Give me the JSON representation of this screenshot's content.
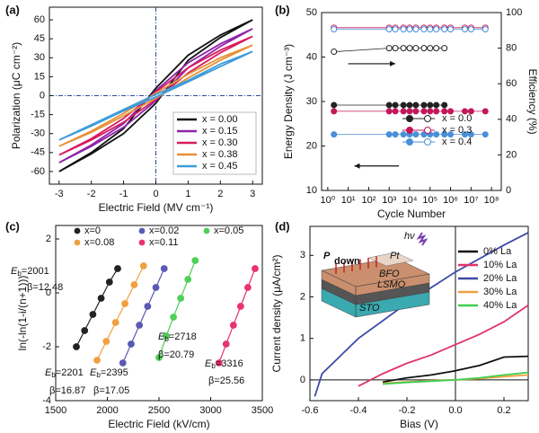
{
  "chart_data": [
    {
      "type": "line",
      "panel_label": "(a)",
      "xlabel": "Electric Field (MV cm⁻¹)",
      "ylabel": "Polarization (μC cm⁻²)",
      "x": [
        -3,
        -2,
        -1,
        0,
        1,
        2,
        3,
        2,
        1,
        0,
        -1,
        -2,
        -3
      ],
      "series": [
        {
          "name": "x = 0.00",
          "color": "#111111",
          "values": [
            -60,
            -46,
            -30,
            -6,
            28,
            46,
            60,
            48,
            32,
            6,
            -26,
            -45,
            -60
          ]
        },
        {
          "name": "x = 0.15",
          "color": "#8e24aa",
          "values": [
            -53,
            -40,
            -25,
            -4,
            22,
            39,
            53,
            41,
            26,
            4,
            -22,
            -39,
            -53
          ]
        },
        {
          "name": "x = 0.30",
          "color": "#d81b60",
          "values": [
            -47,
            -35,
            -21,
            -3,
            18,
            34,
            47,
            36,
            22,
            3,
            -18,
            -34,
            -47
          ]
        },
        {
          "name": "x = 0.38",
          "color": "#e69138",
          "values": [
            -40,
            -29,
            -16,
            -2,
            14,
            28,
            40,
            30,
            17,
            2,
            -14,
            -28,
            -40
          ]
        },
        {
          "name": "x = 0.45",
          "color": "#3d9bd9",
          "values": [
            -35,
            -24,
            -12,
            -1,
            11,
            23,
            35,
            25,
            12,
            1,
            -11,
            -23,
            -35
          ]
        }
      ],
      "xlim": [
        -3.3,
        3.3
      ],
      "xticks": [
        -3,
        -2,
        -1,
        0,
        1,
        2,
        3
      ],
      "ylim": [
        -70,
        70
      ],
      "yticks": [
        -60,
        -45,
        -30,
        -15,
        0,
        15,
        30,
        45,
        60
      ],
      "zero_lines": true,
      "legend": "lower right"
    },
    {
      "type": "line",
      "markers": true,
      "panel_label": "(b)",
      "xlabel": "Cycle Number",
      "ylabel": "Energy Density (J cm⁻³)",
      "y2label": "Efficiency (%)",
      "xscale": "log",
      "x": [
        2,
        1000,
        2000,
        5000,
        10000,
        20000,
        50000,
        100000,
        200000,
        500000,
        1000000,
        5000000,
        10000000,
        50000000
      ],
      "series": [
        {
          "name": "x = 0.0",
          "color": "#222222",
          "values": [
            29.2,
            29.2,
            29.2,
            29.2,
            29.2,
            29.2,
            29.2,
            29.2,
            29.2,
            29.2,
            null,
            null,
            null,
            null
          ]
        },
        {
          "name": "x = 0.3",
          "color": "#c2185b",
          "values": [
            27.8,
            27.8,
            27.8,
            27.8,
            27.8,
            27.8,
            27.8,
            27.8,
            27.8,
            27.8,
            27.8,
            27.8,
            27.8,
            27.8
          ]
        },
        {
          "name": "x = 0.4",
          "color": "#4a90d9",
          "values": [
            22.6,
            22.6,
            22.6,
            22.6,
            22.6,
            22.6,
            22.6,
            22.6,
            22.6,
            22.6,
            22.6,
            22.6,
            22.6,
            22.6
          ]
        },
        {
          "color": "#222222",
          "axis": "y2",
          "marker": "open",
          "values": [
            78,
            80,
            80,
            80,
            80,
            80,
            80,
            80,
            80,
            80,
            null,
            null,
            null,
            null
          ]
        },
        {
          "color": "#c2185b",
          "axis": "y2",
          "marker": "open",
          "values": [
            91.5,
            91.5,
            91.5,
            91.5,
            91.5,
            91.5,
            91.5,
            91.5,
            91.5,
            91.5,
            91.5,
            91.5,
            91.5,
            91.5
          ]
        },
        {
          "color": "#4a90d9",
          "axis": "y2",
          "marker": "open",
          "values": [
            90.6,
            90.6,
            90.6,
            90.6,
            90.6,
            90.6,
            90.6,
            90.6,
            90.6,
            90.6,
            90.6,
            90.6,
            90.6,
            90.6
          ]
        }
      ],
      "xlim": [
        0.5,
        300000000
      ],
      "xticks": [
        {
          "value": 1,
          "label": "10⁰"
        },
        {
          "value": 10,
          "label": "10¹"
        },
        {
          "value": 100,
          "label": "10²"
        },
        {
          "value": 1000,
          "label": "10³"
        },
        {
          "value": 10000,
          "label": "10⁴"
        },
        {
          "value": 100000,
          "label": "10⁵"
        },
        {
          "value": 1000000,
          "label": "10⁶"
        },
        {
          "value": 10000000,
          "label": "10⁷"
        },
        {
          "value": 100000000,
          "label": "10⁸"
        }
      ],
      "ylim": [
        10,
        50
      ],
      "yticks": [
        10,
        20,
        30,
        40,
        50
      ],
      "y2lim": [
        0,
        100
      ],
      "y2ticks": [
        0,
        20,
        40,
        60,
        80,
        100
      ],
      "legend": "center right"
    },
    {
      "type": "scatter",
      "fit_lines": true,
      "panel_label": "(c)",
      "xlabel": "Electric Field (kV/cm)",
      "ylabel": "ln(-ln(1-i/(n+1)))",
      "series": [
        {
          "name": "x=0",
          "color": "#222222",
          "x": [
            1700,
            1780,
            1860,
            1940,
            2020,
            2100
          ],
          "values": [
            -2.0,
            -1.4,
            -0.8,
            -0.2,
            0.4,
            0.9
          ]
        },
        {
          "name": "x=0.02",
          "color": "#5a5ab4",
          "x": [
            2150,
            2230,
            2310,
            2390,
            2470,
            2550
          ],
          "values": [
            -2.6,
            -1.9,
            -1.2,
            -0.5,
            0.2,
            0.9
          ]
        },
        {
          "name": "x=0.05",
          "color": "#4fcf5a",
          "x": [
            2500,
            2570,
            2640,
            2710,
            2780,
            2850
          ],
          "values": [
            -2.4,
            -1.6,
            -0.9,
            -0.2,
            0.5,
            1.2
          ]
        },
        {
          "name": "x=0.08",
          "color": "#f0a040",
          "x": [
            1900,
            1990,
            2080,
            2170,
            2260,
            2350
          ],
          "values": [
            -2.5,
            -1.8,
            -1.1,
            -0.4,
            0.3,
            1.0
          ]
        },
        {
          "name": "x=0.11",
          "color": "#e8336b",
          "x": [
            3080,
            3150,
            3220,
            3290,
            3360,
            3430
          ],
          "values": [
            -2.6,
            -1.9,
            -1.2,
            -0.5,
            0.2,
            0.9
          ]
        }
      ],
      "annotations": [
        {
          "eb": "Eb=2001",
          "beta": "β=12.48"
        },
        {
          "eb": "Eb=2201",
          "beta": "β=16.87"
        },
        {
          "eb": "Eb=2395",
          "beta": "β=17.05"
        },
        {
          "eb": "Eb=2718",
          "beta": "β=20.79"
        },
        {
          "eb": "Eb=3316",
          "beta": "β=25.56"
        }
      ],
      "xlim": [
        1500,
        3500
      ],
      "xticks": [
        1500,
        2000,
        2500,
        3000,
        3500
      ],
      "ylim": [
        -4,
        2.5
      ],
      "yticks": [
        -4,
        -2,
        0,
        2
      ],
      "legend": "upper left",
      "legend_columns": 3
    },
    {
      "type": "line",
      "panel_label": "(d)",
      "xlabel": "Bias (V)",
      "ylabel": "Current density (μA/cm²)",
      "series": [
        {
          "name": "0% La",
          "color": "#111111",
          "x": [
            -0.3,
            -0.2,
            -0.1,
            0,
            0.1,
            0.2,
            0.3
          ],
          "values": [
            -0.05,
            0.05,
            0.12,
            0.22,
            0.35,
            0.55,
            0.57
          ]
        },
        {
          "name": "10% La",
          "color": "#e0336b",
          "x": [
            -0.4,
            -0.3,
            -0.2,
            -0.1,
            0,
            0.1,
            0.2,
            0.3
          ],
          "values": [
            -0.15,
            0.15,
            0.4,
            0.6,
            0.85,
            1.1,
            1.4,
            1.8
          ]
        },
        {
          "name": "20% La",
          "color": "#3d4aa8",
          "x": [
            -0.58,
            -0.55,
            -0.4,
            -0.2,
            0,
            0.2,
            0.3
          ],
          "values": [
            -0.4,
            0.15,
            1.0,
            1.85,
            2.6,
            3.25,
            3.55
          ]
        },
        {
          "name": "30% La",
          "color": "#f0a040",
          "x": [
            -0.3,
            -0.2,
            -0.1,
            0,
            0.1,
            0.2,
            0.3
          ],
          "values": [
            -0.08,
            -0.05,
            -0.02,
            0.0,
            0.03,
            0.08,
            0.12
          ]
        },
        {
          "name": "40% La",
          "color": "#3ccf4e",
          "x": [
            -0.3,
            -0.2,
            -0.1,
            0,
            0.1,
            0.2,
            0.3
          ],
          "values": [
            -0.1,
            -0.06,
            -0.03,
            0.0,
            0.05,
            0.12,
            0.18
          ]
        }
      ],
      "inset": {
        "light": "hν",
        "polarization": "P",
        "direction": "down",
        "layers": [
          "Pt",
          "BFO",
          "LSMO",
          "STO"
        ]
      },
      "xlim": [
        -0.6,
        0.3
      ],
      "xticks": [
        -0.6,
        -0.4,
        -0.2,
        {
          "value": 0,
          "label": "0.0"
        },
        0.2
      ],
      "ylim": [
        -0.5,
        3.7
      ],
      "yticks": [
        0,
        1,
        2,
        3
      ],
      "zero_lines": true,
      "legend": "upper right",
      "legend_text_colored": true
    }
  ]
}
